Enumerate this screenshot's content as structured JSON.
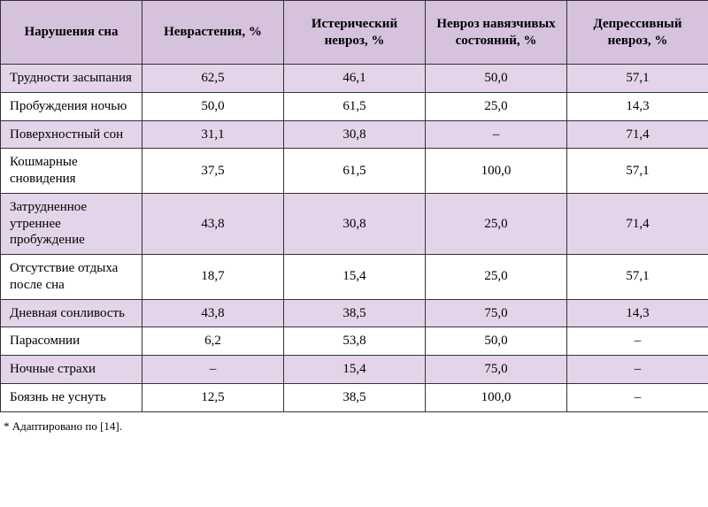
{
  "table": {
    "header_bg": "#d6c2dd",
    "row_colors": {
      "even": "#e4d4ea",
      "odd": "#ffffff"
    },
    "border_color": "#333333",
    "columns": [
      "Нарушения сна",
      "Неврастения, %",
      "Истерический невроз, %",
      "Невроз навязчивых состояний, %",
      "Депрессивный невроз, %"
    ],
    "rows": [
      {
        "label": "Трудности засыпания",
        "values": [
          "62,5",
          "46,1",
          "50,0",
          "57,1"
        ]
      },
      {
        "label": "Пробуждения ночью",
        "values": [
          "50,0",
          "61,5",
          "25,0",
          "14,3"
        ]
      },
      {
        "label": "Поверхностный сон",
        "values": [
          "31,1",
          "30,8",
          "–",
          "71,4"
        ]
      },
      {
        "label": "Кошмарные сновидения",
        "values": [
          "37,5",
          "61,5",
          "100,0",
          "57,1"
        ]
      },
      {
        "label": "Затрудненное утреннее пробуждение",
        "values": [
          "43,8",
          "30,8",
          "25,0",
          "71,4"
        ]
      },
      {
        "label": "Отсутствие отдыха после сна",
        "values": [
          "18,7",
          "15,4",
          "25,0",
          "57,1"
        ]
      },
      {
        "label": "Дневная сонливость",
        "values": [
          "43,8",
          "38,5",
          "75,0",
          "14,3"
        ]
      },
      {
        "label": "Парасомнии",
        "values": [
          "6,2",
          "53,8",
          "50,0",
          "–"
        ]
      },
      {
        "label": "Ночные страхи",
        "values": [
          "–",
          "15,4",
          "75,0",
          "–"
        ]
      },
      {
        "label": "Боязнь не уснуть",
        "values": [
          "12,5",
          "38,5",
          "100,0",
          "–"
        ]
      }
    ]
  },
  "footnote": "* Адаптировано по [14]."
}
